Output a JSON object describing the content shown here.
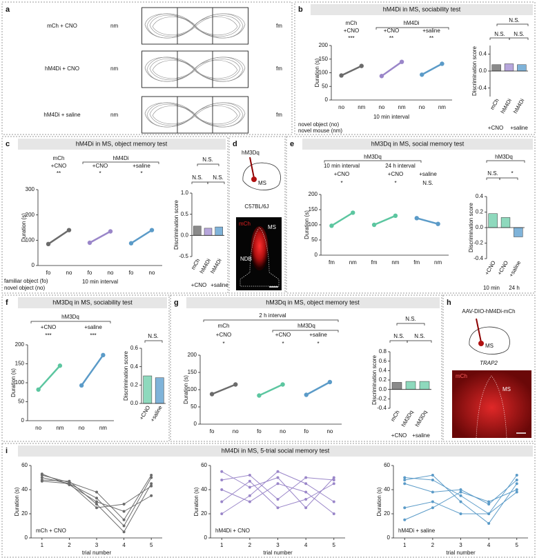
{
  "panel_letters": [
    "a",
    "b",
    "c",
    "d",
    "e",
    "f",
    "g",
    "h",
    "i"
  ],
  "titles": {
    "b": "hM4Di in MS, sociability test",
    "c": "hM4Di in MS, object memory test",
    "e": "hM3Dq in MS, social memory test",
    "f": "hM3Dq in MS, sociability test",
    "g": "hM3Dq in MS, object memory test",
    "i": "hM4Di in MS, 5-trial social memory test"
  },
  "panel_a": {
    "rows": [
      "mCh + CNO",
      "hM4Di + CNO",
      "hM4Di + saline"
    ],
    "left": "nm",
    "right": "fm"
  },
  "panel_d": {
    "construct": "hM3Dq",
    "region": "MS",
    "strain": "C57BL/6J",
    "channel": "mCh",
    "ms": "MS",
    "ndb": "NDB"
  },
  "panel_h": {
    "construct": "AAV-DIO-hM4Di-mCh",
    "region": "MS",
    "strain": "TRAP2",
    "channel": "mCh",
    "ms": "MS"
  },
  "chart_data": [
    {
      "type": "paired",
      "ylabel": "Duration (s)",
      "ylim": [
        0,
        200
      ],
      "yticks": [
        0,
        50,
        100,
        150,
        200
      ],
      "series": [
        {
          "categories": [
            "no",
            "nm"
          ],
          "values": [
            90,
            125
          ],
          "color": "#6b6b6b"
        },
        {
          "categories": [
            "no",
            "nm"
          ],
          "values": [
            88,
            140
          ],
          "color": "#9a86c9"
        },
        {
          "categories": [
            "no",
            "nm"
          ],
          "values": [
            93,
            133
          ],
          "color": "#5b9bc8"
        }
      ],
      "annotations": [
        "mCh",
        "+CNO",
        "***",
        "hM4Di",
        "+CNO",
        "+saline",
        "**",
        "**",
        "10 min interval",
        "novel object (no)",
        "novel mouse (nm)"
      ]
    },
    {
      "type": "bar",
      "ylabel": "Discrimination score",
      "ylim": [
        -0.6,
        0.6
      ],
      "yticks": [
        {
          "value": -0.4,
          "label": "-0.4"
        },
        {
          "value": 0,
          "label": "0.0"
        },
        {
          "value": 0.4,
          "label": "0.4"
        }
      ],
      "categories": [
        "mCh",
        "hM4Di",
        "hM4Di"
      ],
      "values": [
        0.15,
        0.17,
        0.15
      ],
      "colors": [
        "#8a8a8a",
        "#b7a6dc",
        "#7fb3d9"
      ],
      "annotations": [
        "N.S.",
        "N.S.",
        "N.S.",
        "+CNO",
        "+saline"
      ]
    },
    {
      "type": "paired",
      "ylabel": "Duration (s)",
      "ylim": [
        0,
        300
      ],
      "yticks": [
        0,
        100,
        200,
        300
      ],
      "series": [
        {
          "categories": [
            "fo",
            "no"
          ],
          "values": [
            85,
            140
          ],
          "color": "#6b6b6b"
        },
        {
          "categories": [
            "fo",
            "no"
          ],
          "values": [
            90,
            135
          ],
          "color": "#9a86c9"
        },
        {
          "categories": [
            "fo",
            "no"
          ],
          "values": [
            88,
            140
          ],
          "color": "#5b9bc8"
        }
      ],
      "annotations": [
        "mCh",
        "+CNO",
        "**",
        "hM4Di",
        "+CNO",
        "*",
        "+saline",
        "*",
        "10 min interval",
        "familiar object (fo)",
        "novel object (no)"
      ]
    },
    {
      "type": "bar",
      "ylabel": "Discrimination score",
      "ylim": [
        -0.5,
        1.0
      ],
      "yticks": [
        {
          "value": -0.5,
          "label": "-0.5"
        },
        {
          "value": 0,
          "label": "0.0"
        },
        {
          "value": 0.5,
          "label": "0.5"
        },
        {
          "value": 1,
          "label": "1.0"
        }
      ],
      "categories": [
        "mCh",
        "hM4Di",
        "hM4Di"
      ],
      "values": [
        0.22,
        0.17,
        0.2
      ],
      "colors": [
        "#8a8a8a",
        "#b7a6dc",
        "#7fb3d9"
      ],
      "annotations": [
        "N.S.",
        "N.S.",
        "N.S.",
        "+CNO",
        "+saline"
      ]
    },
    {
      "type": "paired",
      "ylabel": "Duration (s)",
      "ylim": [
        0,
        200
      ],
      "yticks": [
        0,
        50,
        100,
        150,
        200
      ],
      "series": [
        {
          "categories": [
            "fm",
            "nm"
          ],
          "values": [
            97,
            140
          ],
          "color": "#5cc6a0"
        },
        {
          "categories": [
            "fm",
            "nm"
          ],
          "values": [
            100,
            130
          ],
          "color": "#5cc6a0"
        },
        {
          "categories": [
            "fm",
            "nm"
          ],
          "values": [
            122,
            103
          ],
          "color": "#5b9bc8"
        }
      ],
      "annotations": [
        "hM3Dq",
        "10 min interval",
        "24 h interval",
        "+CNO",
        "+CNO",
        "+saline",
        "*",
        "*",
        "N.S."
      ]
    },
    {
      "type": "bar",
      "ylabel": "Discrimination score",
      "ylim": [
        -0.4,
        0.4
      ],
      "yticks": [
        {
          "value": -0.4,
          "label": "-0.4"
        },
        {
          "value": -0.2,
          "label": "-0.2"
        },
        {
          "value": 0,
          "label": "0.0"
        },
        {
          "value": 0.2,
          "label": "0.2"
        },
        {
          "value": 0.4,
          "label": "0.4"
        }
      ],
      "categories": [
        "+CNO",
        "+CNO",
        "+saline"
      ],
      "values": [
        0.18,
        0.13,
        -0.12
      ],
      "colors": [
        "#8ed9bd",
        "#8ed9bd",
        "#7fb3d9"
      ],
      "annotations": [
        "hM3Dq",
        "N.S.",
        "*",
        "10 min",
        "24 h"
      ]
    },
    {
      "type": "paired",
      "ylabel": "Duration (s)",
      "ylim": [
        0,
        200
      ],
      "yticks": [
        0,
        50,
        100,
        150,
        200
      ],
      "series": [
        {
          "categories": [
            "no",
            "nm"
          ],
          "values": [
            82,
            145
          ],
          "color": "#5cc6a0"
        },
        {
          "categories": [
            "no",
            "nm"
          ],
          "values": [
            93,
            173
          ],
          "color": "#5b9bc8"
        }
      ],
      "annotations": [
        "hM3Dq",
        "+CNO",
        "***",
        "+saline",
        "***"
      ]
    },
    {
      "type": "bar",
      "ylabel": "Discrimination score",
      "ylim": [
        0,
        0.6
      ],
      "yticks": [
        {
          "value": 0,
          "label": "0.0"
        },
        {
          "value": 0.2,
          "label": "0.2"
        },
        {
          "value": 0.4,
          "label": "0.4"
        },
        {
          "value": 0.6,
          "label": "0.6"
        }
      ],
      "categories": [
        "+CNO",
        "+saline"
      ],
      "values": [
        0.3,
        0.28
      ],
      "colors": [
        "#8ed9bd",
        "#7fb3d9"
      ],
      "annotations": [
        "N.S."
      ]
    },
    {
      "type": "paired",
      "ylabel": "Duration (s)",
      "ylim": [
        0,
        200
      ],
      "yticks": [
        0,
        50,
        100,
        150,
        200
      ],
      "series": [
        {
          "categories": [
            "fo",
            "no"
          ],
          "values": [
            87,
            115
          ],
          "color": "#6b6b6b"
        },
        {
          "categories": [
            "fo",
            "no"
          ],
          "values": [
            83,
            115
          ],
          "color": "#5cc6a0"
        },
        {
          "categories": [
            "fo",
            "no"
          ],
          "values": [
            85,
            122
          ],
          "color": "#5b9bc8"
        }
      ],
      "annotations": [
        "2 h interval",
        "mCh",
        "hM3Dq",
        "+CNO",
        "+CNO",
        "+saline",
        "*",
        "*",
        "*"
      ]
    },
    {
      "type": "bar",
      "ylabel": "Discrimination score",
      "ylim": [
        -0.4,
        0.8
      ],
      "yticks": [
        {
          "value": -0.4,
          "label": "-0.4"
        },
        {
          "value": -0.2,
          "label": "-0.2"
        },
        {
          "value": 0,
          "label": "0.0"
        },
        {
          "value": 0.2,
          "label": "0.2"
        },
        {
          "value": 0.4,
          "label": "0.4"
        },
        {
          "value": 0.6,
          "label": "0.6"
        },
        {
          "value": 0.8,
          "label": "0.8"
        }
      ],
      "categories": [
        "mCh",
        "hM3Dq",
        "hM3Dq"
      ],
      "values": [
        0.15,
        0.17,
        0.17
      ],
      "colors": [
        "#8a8a8a",
        "#8ed9bd",
        "#8ed9bd"
      ],
      "annotations": [
        "N.S.",
        "N.S.",
        "N.S.",
        "+CNO",
        "+saline"
      ]
    },
    {
      "type": "line",
      "ylabel": "Duration (s)",
      "xlabel": "trial number",
      "x": [
        1,
        2,
        3,
        4,
        5
      ],
      "xlim": [
        0.6,
        5.4
      ],
      "xticks": [
        1,
        2,
        3,
        4,
        5
      ],
      "ylim": [
        0,
        60
      ],
      "yticks": [
        0,
        20,
        40,
        60
      ],
      "color": "#6b6b6b",
      "series": [
        {
          "values": [
            52,
            46,
            38,
            15,
            52
          ]
        },
        {
          "values": [
            50,
            45,
            33,
            10,
            50
          ]
        },
        {
          "values": [
            48,
            47,
            28,
            5,
            45
          ]
        },
        {
          "values": [
            53,
            44,
            30,
            22,
            35
          ]
        },
        {
          "values": [
            47,
            45,
            25,
            28,
            43
          ]
        }
      ],
      "annotations": [
        "mCh + CNO"
      ]
    },
    {
      "type": "line",
      "ylabel": "Duration (s)",
      "xlabel": "trial number",
      "x": [
        1,
        2,
        3,
        4,
        5
      ],
      "xlim": [
        0.6,
        5.4
      ],
      "xticks": [
        1,
        2,
        3,
        4,
        5
      ],
      "ylim": [
        0,
        60
      ],
      "yticks": [
        0,
        20,
        40,
        60
      ],
      "color": "#9a86c9",
      "series": [
        {
          "values": [
            48,
            52,
            32,
            50,
            48
          ]
        },
        {
          "values": [
            40,
            30,
            45,
            38,
            20
          ]
        },
        {
          "values": [
            30,
            47,
            25,
            32,
            45
          ]
        },
        {
          "values": [
            55,
            42,
            50,
            25,
            50
          ]
        },
        {
          "values": [
            20,
            35,
            55,
            45,
            30
          ]
        }
      ],
      "annotations": [
        "hM4Di + CNO"
      ]
    },
    {
      "type": "line",
      "ylabel": "Duration (s)",
      "xlabel": "trial number",
      "x": [
        1,
        2,
        3,
        4,
        5
      ],
      "xlim": [
        0.6,
        5.4
      ],
      "xticks": [
        1,
        2,
        3,
        4,
        5
      ],
      "ylim": [
        0,
        60
      ],
      "yticks": [
        0,
        20,
        40,
        60
      ],
      "color": "#5b9bc8",
      "series": [
        {
          "values": [
            50,
            48,
            35,
            20,
            52
          ]
        },
        {
          "values": [
            48,
            52,
            30,
            12,
            45
          ]
        },
        {
          "values": [
            45,
            38,
            40,
            28,
            48
          ]
        },
        {
          "values": [
            25,
            30,
            20,
            20,
            38
          ]
        },
        {
          "values": [
            15,
            25,
            38,
            30,
            40
          ]
        }
      ],
      "annotations": [
        "hM4Di + saline"
      ]
    }
  ]
}
